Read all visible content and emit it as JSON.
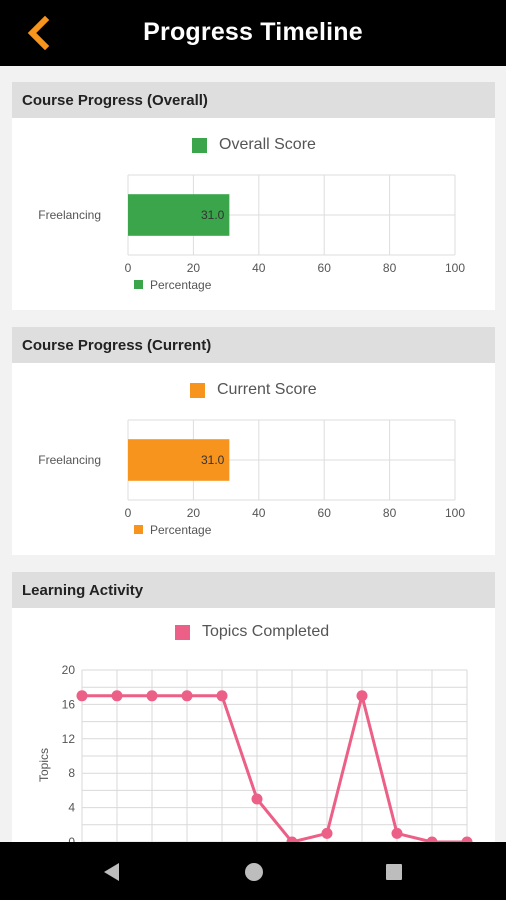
{
  "header": {
    "title": "Progress Timeline",
    "back_icon": "chevron-left-icon",
    "accent": "#f7941d"
  },
  "cards": [
    {
      "title": "Course Progress (Overall)",
      "chart_data": {
        "type": "bar",
        "orientation": "horizontal",
        "legend_top": "Overall Score",
        "legend_bottom": "Percentage",
        "color": "#3aa54a",
        "categories": [
          "Freelancing"
        ],
        "values": [
          31.0
        ],
        "value_labels": [
          "31.0"
        ],
        "xlim": [
          0,
          100
        ],
        "x_ticks": [
          0,
          20,
          40,
          60,
          80,
          100
        ]
      }
    },
    {
      "title": "Course Progress (Current)",
      "chart_data": {
        "type": "bar",
        "orientation": "horizontal",
        "legend_top": "Current Score",
        "legend_bottom": "Percentage",
        "color": "#f7941d",
        "categories": [
          "Freelancing"
        ],
        "values": [
          31.0
        ],
        "value_labels": [
          "31.0"
        ],
        "xlim": [
          0,
          100
        ],
        "x_ticks": [
          0,
          20,
          40,
          60,
          80,
          100
        ]
      }
    },
    {
      "title": "Learning Activity",
      "chart_data": {
        "type": "line",
        "legend_top": "Topics Completed",
        "ylabel": "Topics",
        "color": "#ec5f86",
        "x": [
          0,
          1,
          2,
          3,
          4,
          5,
          6,
          7,
          8,
          9,
          10,
          11
        ],
        "values": [
          17,
          17,
          17,
          17,
          17,
          5,
          0,
          1,
          17,
          1,
          0,
          0
        ],
        "ylim": [
          0,
          20
        ],
        "y_ticks": [
          0,
          4,
          8,
          12,
          16,
          20
        ]
      }
    }
  ],
  "navbar": {
    "back_icon": "triangle-back-icon",
    "home_icon": "circle-home-icon",
    "recents_icon": "square-recents-icon"
  }
}
